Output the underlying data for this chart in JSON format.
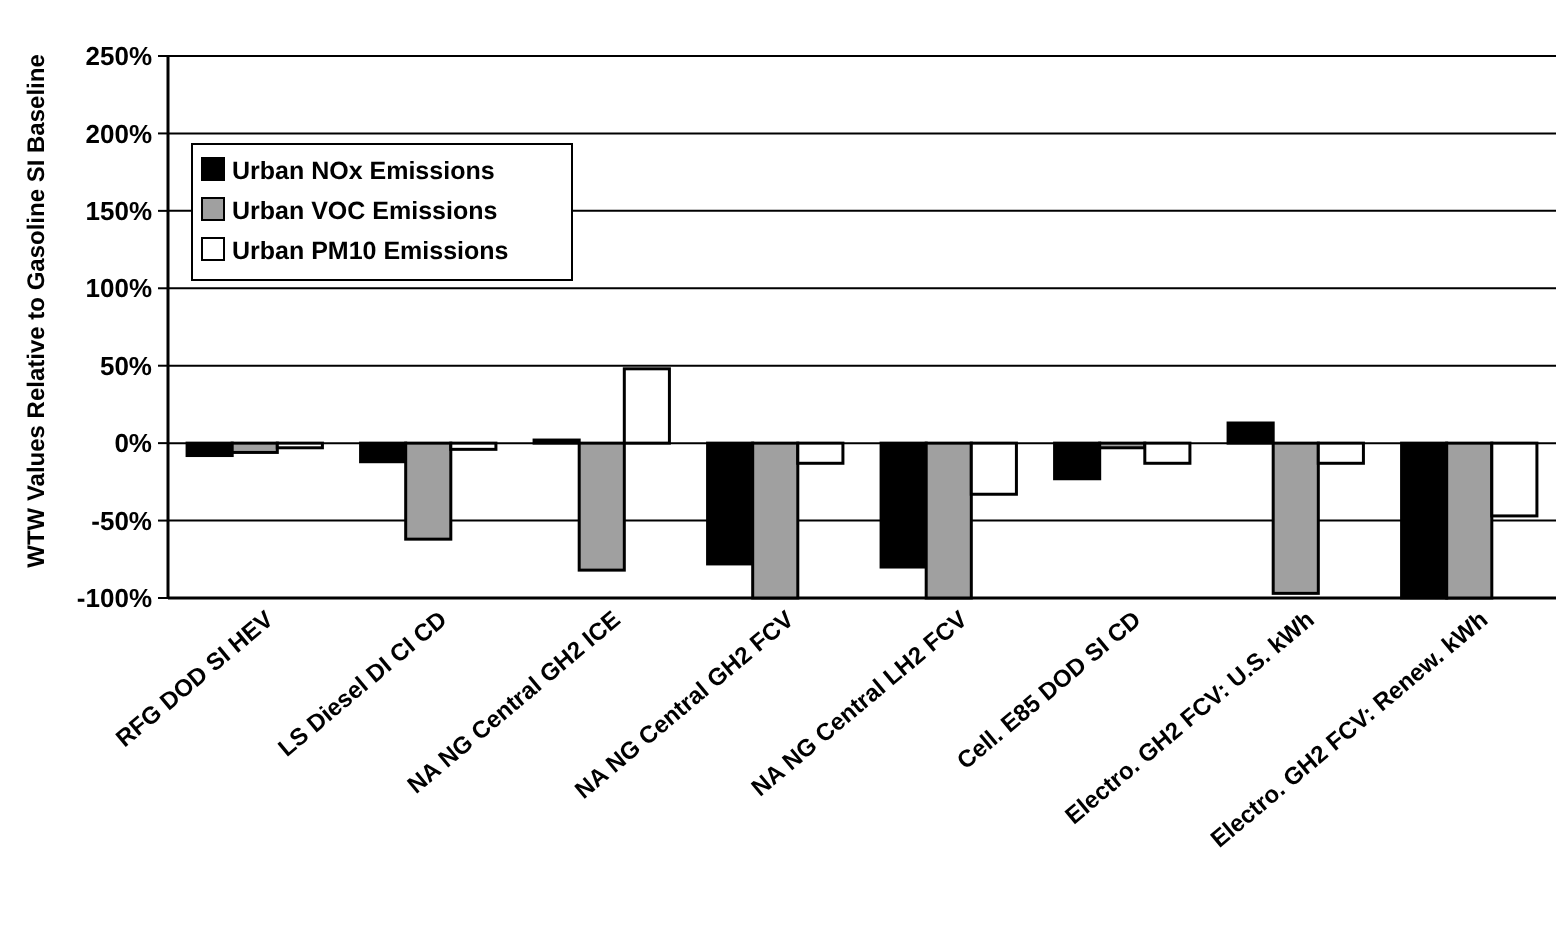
{
  "chart_data": {
    "type": "bar",
    "ylabel": "WTW Values Relative to Gasoline SI Baseline",
    "categories": [
      "RFG DOD SI HEV",
      "LS Diesel DI CI CD",
      "NA NG Central GH2 ICE",
      "NA NG Central GH2 FCV",
      "NA NG Central LH2 FCV",
      "Cell. E85 DOD SI CD",
      "Electro. GH2 FCV: U.S. kWh",
      "Electro. GH2 FCV: Renew. kWh"
    ],
    "series": [
      {
        "name": "Urban NOx Emissions",
        "color": "#000000",
        "values": [
          -8,
          -12,
          2,
          -78,
          -80,
          -23,
          13,
          -100
        ]
      },
      {
        "name": "Urban VOC Emissions",
        "color": "#a0a0a0",
        "values": [
          -6,
          -62,
          -82,
          -100,
          -100,
          -3,
          -97,
          -100
        ]
      },
      {
        "name": "Urban PM10 Emissions",
        "color": "#ffffff",
        "values": [
          -3,
          -4,
          48,
          -13,
          -33,
          -13,
          -13,
          -47
        ]
      }
    ],
    "ylim": [
      -100,
      250
    ],
    "yticks": [
      {
        "value": -100,
        "label": "-100%"
      },
      {
        "value": -50,
        "label": "-50%"
      },
      {
        "value": 0,
        "label": "0%"
      },
      {
        "value": 50,
        "label": "50%"
      },
      {
        "value": 100,
        "label": "100%"
      },
      {
        "value": 150,
        "label": "150%"
      },
      {
        "value": 200,
        "label": "200%"
      },
      {
        "value": 250,
        "label": "250%"
      }
    ],
    "grid": "y",
    "legend": "top left"
  }
}
